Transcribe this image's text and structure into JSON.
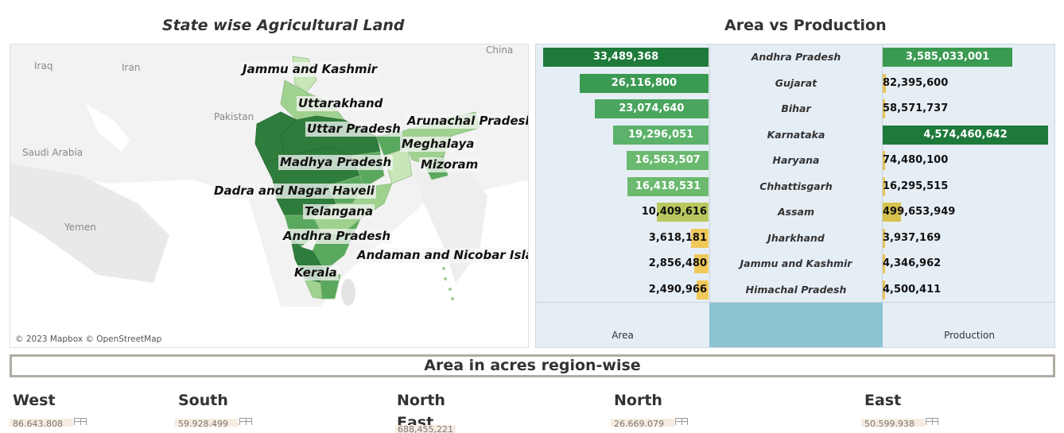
{
  "map": {
    "title": "State wise Agricultural Land",
    "attribution": "© 2023 Mapbox © OpenStreetMap",
    "country_labels": [
      "Iraq",
      "Iran",
      "Pakistan",
      "China",
      "Saudi Arabia",
      "Yemen"
    ],
    "state_labels": [
      "Jammu and Kashmir",
      "Uttarakhand",
      "Uttar Pradesh",
      "Arunachal Pradesh",
      "Meghalaya",
      "Madhya Pradesh",
      "Mizoram",
      "Dadra and Nagar Haveli",
      "Telangana",
      "Andhra Pradesh",
      "Andaman and Nicobar Island",
      "Kerala"
    ],
    "colors": {
      "dark": "#2f7d3c",
      "mid": "#5aa85e",
      "light": "#9fd18f",
      "pale": "#c8e6b8"
    }
  },
  "area_vs_production": {
    "title": "Area vs Production",
    "axis_left": "Area",
    "axis_right": "Production",
    "rows": [
      {
        "state": "Andhra Pradesh",
        "area": "33,489,368",
        "production": "3,585,033,001",
        "area_color": "#1e7a3a",
        "prod_color": "#3b9a52"
      },
      {
        "state": "Gujarat",
        "area": "26,116,800",
        "production": "82,395,600",
        "area_color": "#3b9a52",
        "prod_color": "#e8c55a"
      },
      {
        "state": "Bihar",
        "area": "23,074,640",
        "production": "58,571,737",
        "area_color": "#4aa55e",
        "prod_color": "#e8c55a"
      },
      {
        "state": "Karnataka",
        "area": "19,296,051",
        "production": "4,574,460,642",
        "area_color": "#5cb26a",
        "prod_color": "#1e7a3a"
      },
      {
        "state": "Haryana",
        "area": "16,563,507",
        "production": "74,480,100",
        "area_color": "#69b96e",
        "prod_color": "#e8c55a"
      },
      {
        "state": "Chhattisgarh",
        "area": "16,418,531",
        "production": "16,295,515",
        "area_color": "#6bba6f",
        "prod_color": "#e8c55a"
      },
      {
        "state": "Assam",
        "area": "10,409,616",
        "production": "499,653,949",
        "area_color": "#b9c85e",
        "prod_color": "#d8c24e"
      },
      {
        "state": "Jharkhand",
        "area": "3,618,181",
        "production": "3,937,169",
        "area_color": "#f0c85a",
        "prod_color": "#e8c55a"
      },
      {
        "state": "Jammu and Kashmir",
        "area": "2,856,480",
        "production": "4,346,962",
        "area_color": "#f0c85a",
        "prod_color": "#e8c55a"
      },
      {
        "state": "Himachal Pradesh",
        "area": "2,490,966",
        "production": "4,500,411",
        "area_color": "#f0c85a",
        "prod_color": "#e8c55a"
      }
    ]
  },
  "regions": {
    "title": "Area in acres region-wise",
    "items": [
      {
        "name": "West",
        "value": "86,643,808"
      },
      {
        "name": "South",
        "value": "59,928,499"
      },
      {
        "name": "North East",
        "value": "688,455,221"
      },
      {
        "name": "North",
        "value": "26,669,079"
      },
      {
        "name": "East",
        "value": "50,599,938"
      }
    ]
  }
}
